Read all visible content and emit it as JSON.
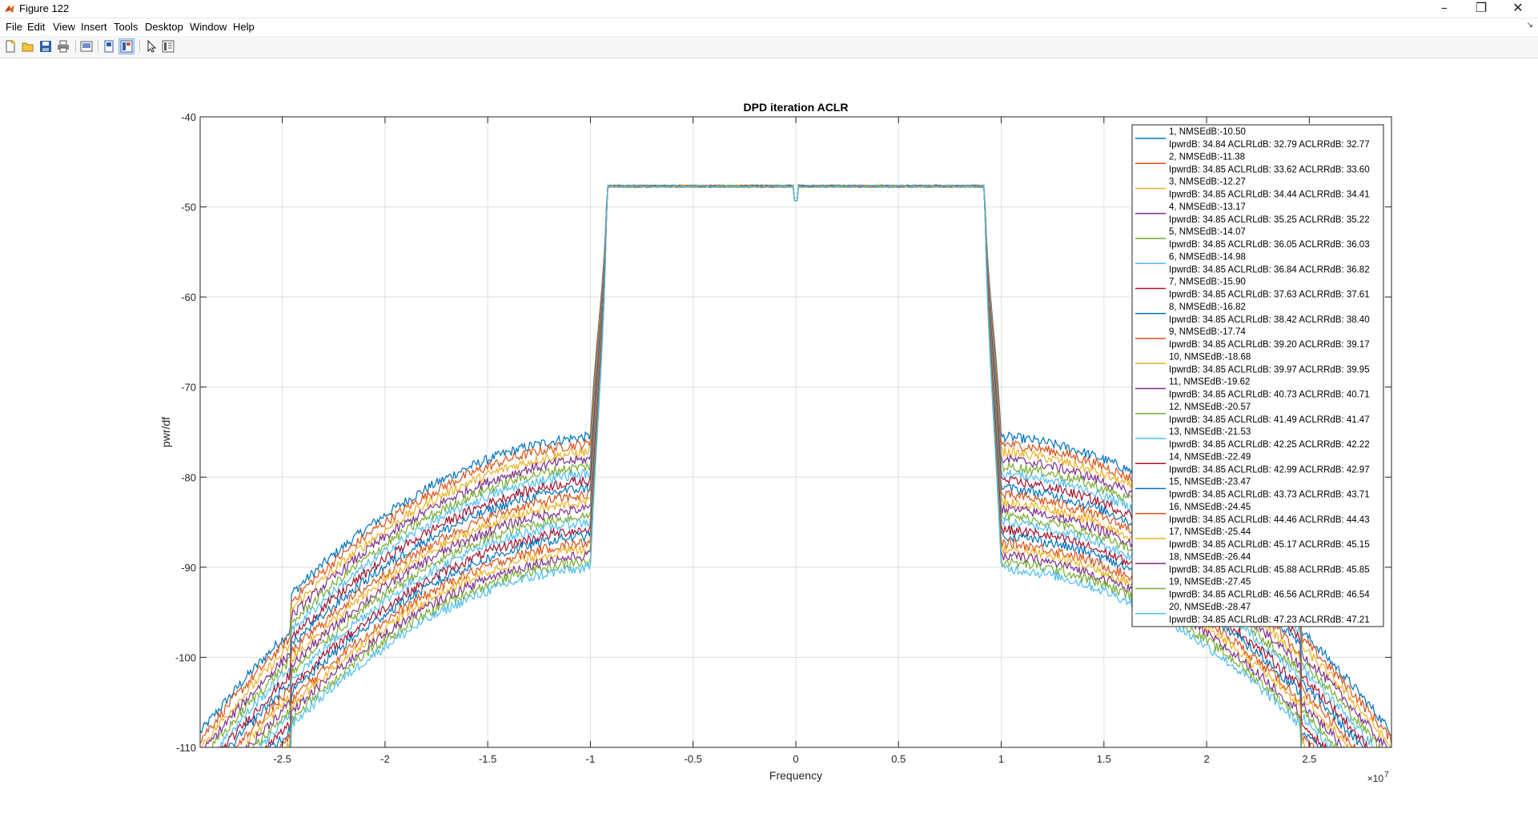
{
  "window": {
    "title": "Figure 122",
    "controls": {
      "minimize": "–",
      "restore": "❐",
      "close": "✕"
    }
  },
  "menu": {
    "items": [
      "File",
      "Edit",
      "View",
      "Insert",
      "Tools",
      "Desktop",
      "Window",
      "Help"
    ],
    "dock_icon": "↘"
  },
  "toolbar": {
    "icons": [
      "new-figure-icon",
      "open-file-icon",
      "save-icon",
      "print-icon",
      "link-plot-icon",
      "hide-plot-tools-icon",
      "show-plot-tools-icon",
      "edit-plot-pointer-icon",
      "property-inspector-icon"
    ]
  },
  "chart_data": {
    "type": "line",
    "title": "DPD iteration ACLR",
    "xlabel": "Frequency",
    "ylabel": "pwr/df",
    "x_exponent_label": "×10",
    "x_exponent": "7",
    "xlim": [
      -29000000,
      29000000
    ],
    "ylim": [
      -110,
      -40
    ],
    "xticks": [
      -25000000,
      -20000000,
      -15000000,
      -10000000,
      -5000000,
      0,
      5000000,
      10000000,
      15000000,
      20000000,
      25000000
    ],
    "xtick_labels": [
      "-2.5",
      "-2",
      "-1.5",
      "-1",
      "-0.5",
      "0",
      "0.5",
      "1",
      "1.5",
      "2",
      "2.5"
    ],
    "yticks": [
      -110,
      -100,
      -90,
      -80,
      -70,
      -60,
      -50,
      -40
    ],
    "ytick_labels": [
      "-110",
      "-100",
      "-90",
      "-80",
      "-70",
      "-60",
      "-50",
      "-40"
    ],
    "grid": true,
    "legend_position": "top-right",
    "inband": {
      "edge_hz": 9200000,
      "level_db": -47.7,
      "center_notch_db": -49.3
    },
    "colors": [
      "#0072BD",
      "#D95319",
      "#EDB120",
      "#7E2F8E",
      "#77AC30",
      "#4DBEEE",
      "#A2142F"
    ],
    "series": [
      {
        "name": "1, NMSEdB:-10.50",
        "detail": "IpwrdB: 34.84 ACLRLdB: 32.79 ACLRRdB: 32.77",
        "edge_level_db": -75.5
      },
      {
        "name": "2, NMSEdB:-11.38",
        "detail": "IpwrdB: 34.85 ACLRLdB: 33.62 ACLRRdB: 33.60",
        "edge_level_db": -76.3
      },
      {
        "name": "3, NMSEdB:-12.27",
        "detail": "IpwrdB: 34.85 ACLRLdB: 34.44 ACLRRdB: 34.41",
        "edge_level_db": -77.2
      },
      {
        "name": "4, NMSEdB:-13.17",
        "detail": "IpwrdB: 34.85 ACLRLdB: 35.25 ACLRRdB: 35.22",
        "edge_level_db": -78.0
      },
      {
        "name": "5, NMSEdB:-14.07",
        "detail": "IpwrdB: 34.85 ACLRLdB: 36.05 ACLRRdB: 36.03",
        "edge_level_db": -78.8
      },
      {
        "name": "6, NMSEdB:-14.98",
        "detail": "IpwrdB: 34.85 ACLRLdB: 36.84 ACLRRdB: 36.82",
        "edge_level_db": -79.6
      },
      {
        "name": "7, NMSEdB:-15.90",
        "detail": "IpwrdB: 34.85 ACLRLdB: 37.63 ACLRRdB: 37.61",
        "edge_level_db": -80.4
      },
      {
        "name": "8, NMSEdB:-16.82",
        "detail": "IpwrdB: 34.85 ACLRLdB: 38.42 ACLRRdB: 38.40",
        "edge_level_db": -81.2
      },
      {
        "name": "9, NMSEdB:-17.74",
        "detail": "IpwrdB: 34.85 ACLRLdB: 39.20 ACLRRdB: 39.17",
        "edge_level_db": -82.0
      },
      {
        "name": "10, NMSEdB:-18.68",
        "detail": "IpwrdB: 34.85 ACLRLdB: 39.97 ACLRRdB: 39.95",
        "edge_level_db": -82.8
      },
      {
        "name": "11, NMSEdB:-19.62",
        "detail": "IpwrdB: 34.85 ACLRLdB: 40.73 ACLRRdB: 40.71",
        "edge_level_db": -83.5
      },
      {
        "name": "12, NMSEdB:-20.57",
        "detail": "IpwrdB: 34.85 ACLRLdB: 41.49 ACLRRdB: 41.47",
        "edge_level_db": -84.3
      },
      {
        "name": "13, NMSEdB:-21.53",
        "detail": "IpwrdB: 34.85 ACLRLdB: 42.25 ACLRRdB: 42.22",
        "edge_level_db": -85.0
      },
      {
        "name": "14, NMSEdB:-22.49",
        "detail": "IpwrdB: 34.85 ACLRLdB: 42.99 ACLRRdB: 42.97",
        "edge_level_db": -85.8
      },
      {
        "name": "15, NMSEdB:-23.47",
        "detail": "IpwrdB: 34.85 ACLRLdB: 43.73 ACLRRdB: 43.71",
        "edge_level_db": -86.5
      },
      {
        "name": "16, NMSEdB:-24.45",
        "detail": "IpwrdB: 34.85 ACLRLdB: 44.46 ACLRRdB: 44.43",
        "edge_level_db": -87.3
      },
      {
        "name": "17, NMSEdB:-25.44",
        "detail": "IpwrdB: 34.85 ACLRLdB: 45.17 ACLRRdB: 45.15",
        "edge_level_db": -88.0
      },
      {
        "name": "18, NMSEdB:-26.44",
        "detail": "IpwrdB: 34.85 ACLRLdB: 45.88 ACLRRdB: 45.85",
        "edge_level_db": -88.7
      },
      {
        "name": "19, NMSEdB:-27.45",
        "detail": "IpwrdB: 34.85 ACLRLdB: 46.56 ACLRRdB: 46.54",
        "edge_level_db": -89.4
      },
      {
        "name": "20, NMSEdB:-28.47",
        "detail": "IpwrdB: 34.85 ACLRLdB: 47.23 ACLRRdB: 47.21",
        "edge_level_db": -90.1
      }
    ]
  }
}
